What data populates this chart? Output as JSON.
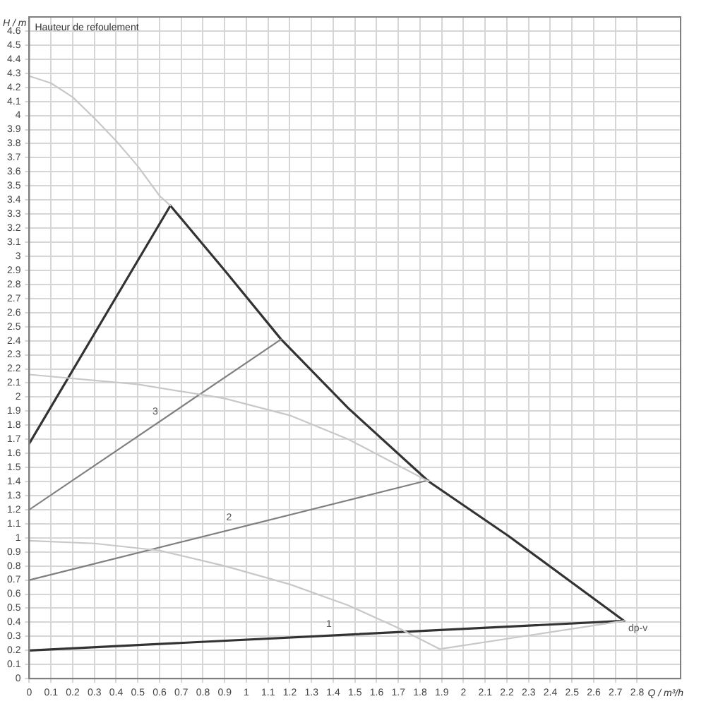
{
  "chart_data": {
    "type": "line",
    "title": "Hauteur de refoulement",
    "xlabel": "Q / m³/h",
    "ylabel": "H / m",
    "xlim": [
      0,
      3.0
    ],
    "ylim": [
      0,
      4.7
    ],
    "xticks": [
      0,
      0.1,
      0.2,
      0.3,
      0.4,
      0.5,
      0.6,
      0.7,
      0.8,
      0.9,
      1,
      1.1,
      1.2,
      1.3,
      1.4,
      1.5,
      1.6,
      1.7,
      1.8,
      1.9,
      2,
      2.1,
      2.2,
      2.3,
      2.4,
      2.5,
      2.6,
      2.7,
      2.8
    ],
    "yticks": [
      0,
      0.1,
      0.2,
      0.3,
      0.4,
      0.5,
      0.6,
      0.7,
      0.8,
      0.9,
      1,
      1.1,
      1.2,
      1.3,
      1.4,
      1.5,
      1.6,
      1.7,
      1.8,
      1.9,
      2,
      2.1,
      2.2,
      2.3,
      2.4,
      2.5,
      2.6,
      2.7,
      2.8,
      2.9,
      3,
      3.1,
      3.2,
      3.3,
      3.4,
      3.5,
      3.6,
      3.7,
      3.8,
      3.9,
      4,
      4.1,
      4.2,
      4.3,
      4.4,
      4.5,
      4.6
    ],
    "grid": true,
    "marker": "none",
    "line_style": "solid",
    "series": [
      {
        "color": "#c8c8c8",
        "x": [
          0,
          0.1,
          0.2,
          0.3,
          0.4,
          0.5,
          0.6,
          0.65
        ],
        "values": [
          4.28,
          4.23,
          4.13,
          3.98,
          3.82,
          3.64,
          3.43,
          3.36
        ]
      },
      {
        "color": "#c8c8c8",
        "x": [
          0,
          0.5,
          0.9,
          1.2,
          1.47,
          1.84
        ],
        "values": [
          2.16,
          2.09,
          1.99,
          1.87,
          1.7,
          1.4
        ]
      },
      {
        "color": "#c8c8c8",
        "x": [
          0,
          0.3,
          0.6,
          0.9,
          1.2,
          1.47,
          1.7,
          1.89,
          2.74
        ],
        "values": [
          0.98,
          0.96,
          0.91,
          0.8,
          0.67,
          0.52,
          0.36,
          0.21,
          0.41
        ]
      },
      {
        "color": "#808080",
        "x": [
          0,
          1.16
        ],
        "values": [
          1.2,
          2.41
        ]
      },
      {
        "color": "#808080",
        "x": [
          0,
          1.84
        ],
        "values": [
          0.7,
          1.41
        ]
      },
      {
        "color": "#333333",
        "x": [
          0,
          0.65,
          0.9,
          1.16,
          1.47,
          1.84,
          2.21,
          2.74,
          0
        ],
        "values": [
          1.67,
          3.36,
          2.9,
          2.41,
          1.92,
          1.4,
          1.01,
          0.41,
          0.2
        ]
      }
    ],
    "annotations": [
      {
        "text": "3",
        "x": 0.58,
        "y": 1.86
      },
      {
        "text": "2",
        "x": 0.92,
        "y": 1.11
      },
      {
        "text": "1",
        "x": 1.38,
        "y": 0.35
      },
      {
        "text": "dp-v",
        "x": 2.74,
        "y": 0.41
      }
    ]
  }
}
